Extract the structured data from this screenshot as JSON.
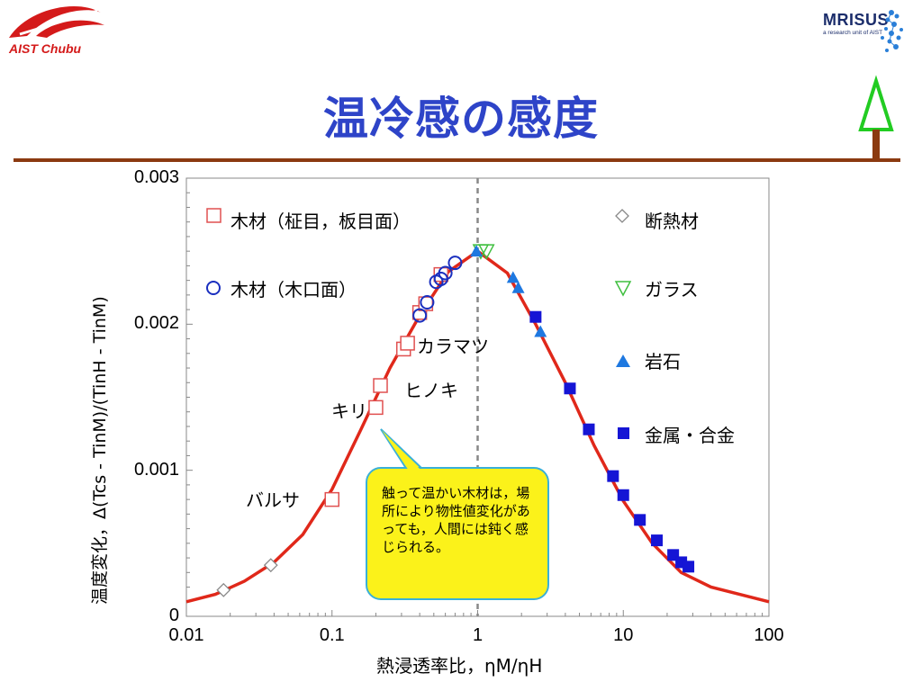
{
  "header": {
    "logo_left_text": "AIST Chubu",
    "logo_right_name": "MRISUS",
    "logo_right_subtitle": "a research unit of AIST",
    "title": "温冷感の感度"
  },
  "colors": {
    "title": "#2e44c8",
    "rule": "#8b3a10",
    "curve": "#e0281a",
    "wood_grain": "#e05050",
    "wood_endgrain": "#1a2fbf",
    "insulation": "#888888",
    "glass": "#3fbf3f",
    "rock": "#1e78e0",
    "metal": "#1515d5",
    "callout_fill": "#fbf21a",
    "callout_border": "#3ab0d8",
    "tree": "#22cc22"
  },
  "annotations": {
    "karamatsu": "カラマツ",
    "hinoki": "ヒノキ",
    "kiri": "キリ",
    "balsa": "バルサ"
  },
  "callout": {
    "text": "触って温かい木材は，場所により物性値変化があっても，人間には鈍く感じられる。"
  },
  "chart_data": {
    "type": "scatter",
    "x_scale": "log",
    "xlim": [
      0.01,
      100
    ],
    "ylim": [
      0,
      0.003
    ],
    "x_ticks": [
      0.01,
      0.1,
      1,
      10,
      100
    ],
    "x_tick_labels": [
      "0.01",
      "0.1",
      "1",
      "10",
      "100"
    ],
    "y_ticks": [
      0,
      0.001,
      0.002,
      0.003
    ],
    "y_tick_labels": [
      "0",
      "0.001",
      "0.002",
      "0.003"
    ],
    "xlabel": "熱浸透率比，ηM/ηH",
    "ylabel": "温度変化，Δ(Tcs - TinM)/(TinH - TinM)",
    "reference_line_x": 1,
    "curve": {
      "x": [
        0.01,
        0.0158,
        0.025,
        0.04,
        0.063,
        0.1,
        0.158,
        0.25,
        0.4,
        0.63,
        1,
        1.6,
        2.5,
        4,
        6.3,
        10,
        15.8,
        25,
        40,
        63,
        100
      ],
      "y": [
        0.0001,
        0.00015,
        0.00024,
        0.00037,
        0.00056,
        0.00087,
        0.00128,
        0.0017,
        0.00206,
        0.00236,
        0.0025,
        0.00235,
        0.002,
        0.0016,
        0.00117,
        0.00079,
        0.0005,
        0.0003,
        0.0002,
        0.00015,
        0.0001
      ]
    },
    "legend_location": "inside-top",
    "series": [
      {
        "name": "木材（柾目，板目面）",
        "marker": "square-open",
        "x": [
          0.1,
          0.2,
          0.215,
          0.31,
          0.33,
          0.4,
          0.44,
          0.56
        ],
        "y": [
          0.0008,
          0.00143,
          0.00158,
          0.00183,
          0.00187,
          0.00208,
          0.00214,
          0.00234
        ]
      },
      {
        "name": "木材（木口面）",
        "marker": "circle-open",
        "x": [
          0.4,
          0.45,
          0.52,
          0.56,
          0.6,
          0.7
        ],
        "y": [
          0.00206,
          0.00215,
          0.00229,
          0.00231,
          0.00235,
          0.00242
        ]
      },
      {
        "name": "断熱材",
        "marker": "diamond-open",
        "x": [
          0.018,
          0.038
        ],
        "y": [
          0.00018,
          0.00035
        ]
      },
      {
        "name": "ガラス",
        "marker": "triangle-down-open",
        "x": [
          1.05,
          1.15
        ],
        "y": [
          0.0025,
          0.0025
        ]
      },
      {
        "name": "岩石",
        "marker": "triangle-up-filled",
        "x": [
          0.98,
          1.75,
          1.9,
          2.7
        ],
        "y": [
          0.0025,
          0.00232,
          0.00225,
          0.00195
        ]
      },
      {
        "name": "金属・合金",
        "marker": "square-filled",
        "x": [
          2.5,
          4.3,
          5.8,
          8.5,
          10,
          13,
          17,
          22,
          25,
          28
        ],
        "y": [
          0.00205,
          0.00156,
          0.00128,
          0.00096,
          0.00083,
          0.00066,
          0.00052,
          0.00042,
          0.00037,
          0.00034
        ]
      }
    ]
  }
}
